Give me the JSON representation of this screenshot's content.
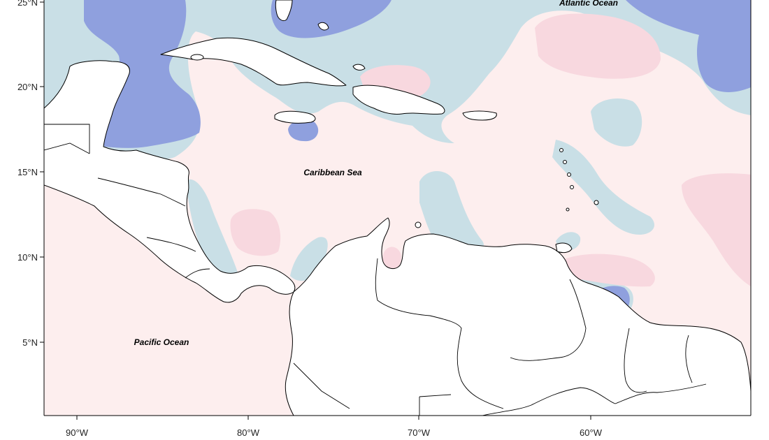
{
  "map": {
    "labels": {
      "atlantic": "Atlantic Ocean",
      "caribbean": "Caribbean Sea",
      "pacific": "Pacific Ocean"
    },
    "latitude_ticks": [
      "25°N",
      "20°N",
      "15°N",
      "10°N",
      "5°N"
    ],
    "longitude_ticks": [
      "90°W",
      "80°W",
      "70°W",
      "60°W"
    ],
    "colors": {
      "strong_negative": "#8fa0de",
      "weak_negative": "#c9dfe6",
      "weak_positive": "#fdeeee",
      "positive": "#f8d8df",
      "land": "#ffffff",
      "coastline": "#000000"
    }
  }
}
